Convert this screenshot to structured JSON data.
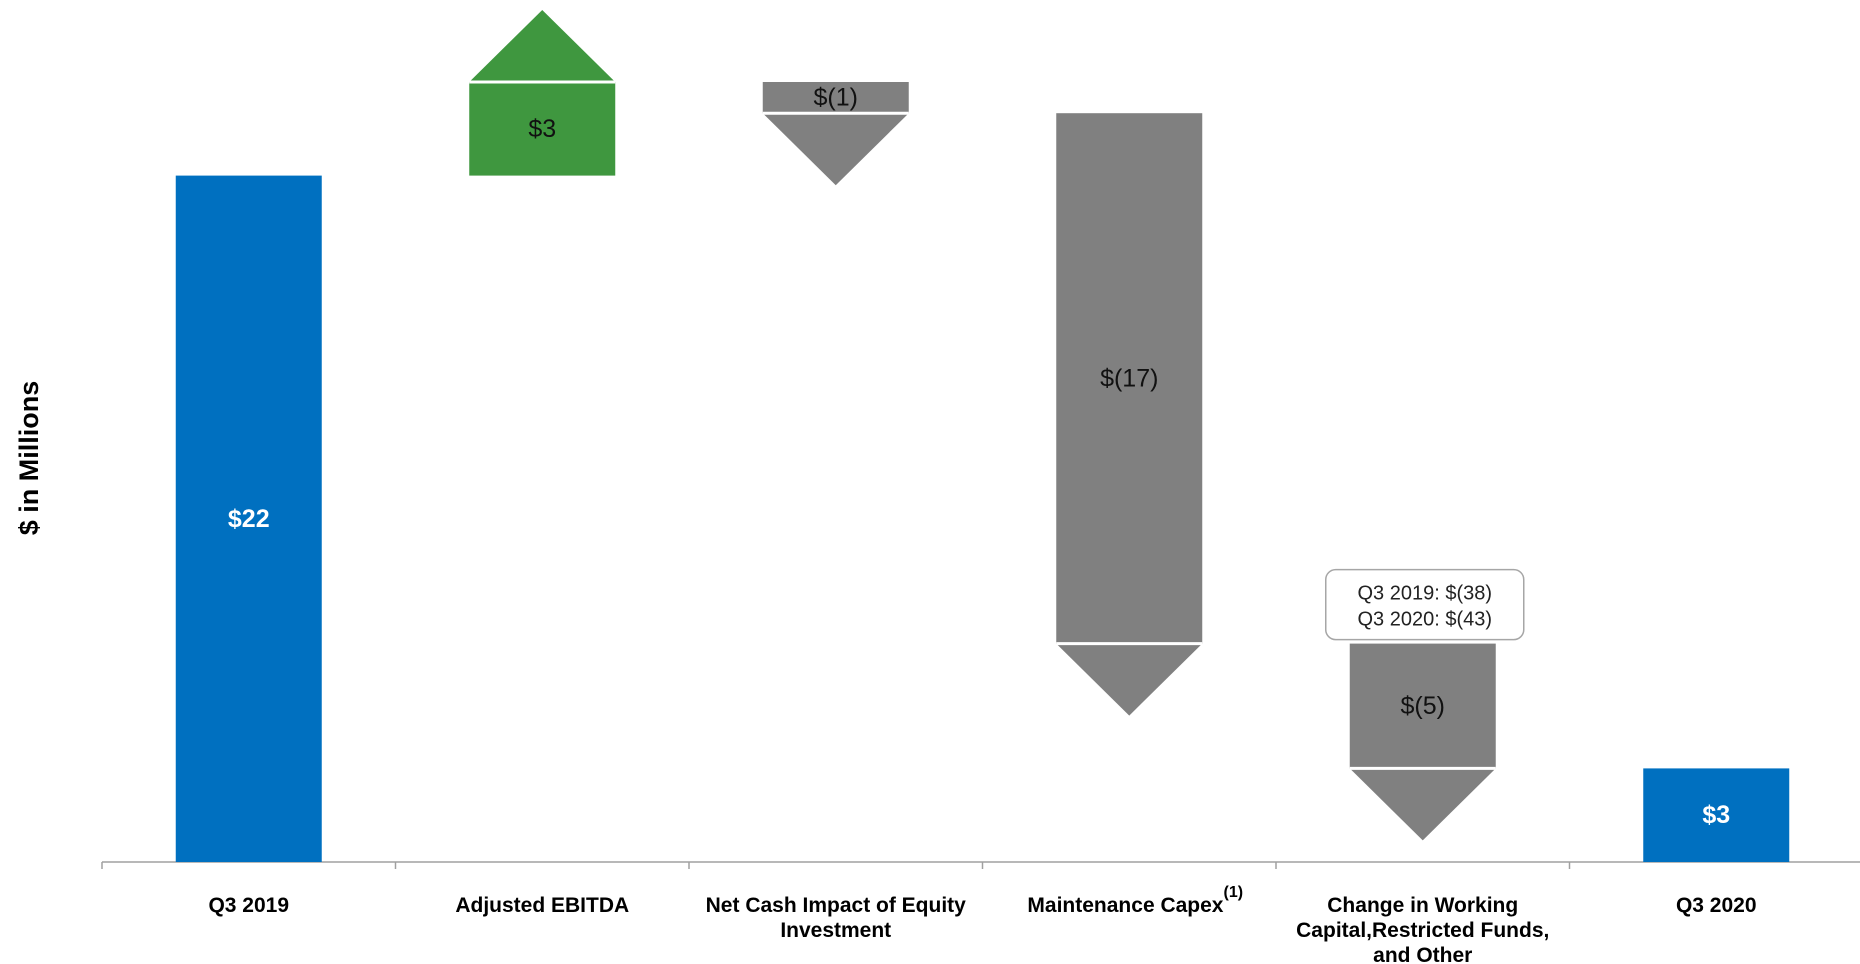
{
  "chart_data": {
    "type": "bar",
    "subtype": "waterfall",
    "ylabel": "$ in Millions",
    "colors": {
      "total": "#0070C0",
      "increase": "#3F973F",
      "decrease": "#808080",
      "axis": "#a0a0a0"
    },
    "ylim": [
      0,
      27
    ],
    "grid": false,
    "steps": [
      {
        "category": [
          "Q3 2019"
        ],
        "kind": "total",
        "value": 22,
        "start": 0,
        "end": 22,
        "label": "$22"
      },
      {
        "category": [
          "Adjusted EBITDA"
        ],
        "kind": "increase",
        "value": 3,
        "start": 22,
        "end": 25,
        "label": "$3"
      },
      {
        "category": [
          "Net Cash Impact of Equity",
          "Investment"
        ],
        "kind": "decrease",
        "value": -1,
        "start": 25,
        "end": 24,
        "label": "$(1)"
      },
      {
        "category": [
          "Maintenance Capex"
        ],
        "footnote": "(1)",
        "kind": "decrease",
        "value": -17,
        "start": 24,
        "end": 7,
        "label": "$(17)"
      },
      {
        "category": [
          "Change in Working",
          "Capital,Restricted Funds,",
          "and Other"
        ],
        "kind": "decrease",
        "value": -5,
        "start": 7,
        "end": 3,
        "label": "$(5)",
        "callout": [
          "Q3 2019: $(38)",
          "Q3 2020: $(43)"
        ]
      },
      {
        "category": [
          "Q3 2020"
        ],
        "kind": "total",
        "value": 3,
        "start": 0,
        "end": 3,
        "label": "$3"
      }
    ]
  }
}
